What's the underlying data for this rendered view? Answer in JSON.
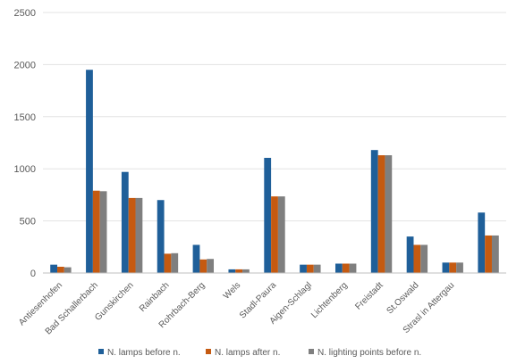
{
  "chart_data": {
    "type": "bar",
    "categories": [
      "Antiesenhofen",
      "Bad Schallerbach",
      "Gunskirchen",
      "Rainbach",
      "Rohrbach-Berg",
      "Wels",
      "Stadl-Paura",
      "Aigen-Schlagl",
      "Lichtenberg",
      "Freistadt",
      "St.Oswald",
      "Strasl in Attergau",
      ""
    ],
    "series": [
      {
        "name": "N. lamps before n.",
        "color": "#1f5f99",
        "values": [
          80,
          1950,
          970,
          700,
          270,
          35,
          1105,
          80,
          90,
          1180,
          350,
          100,
          580
        ]
      },
      {
        "name": "N. lamps after n.",
        "color": "#c55a11",
        "values": [
          60,
          790,
          720,
          185,
          130,
          35,
          735,
          80,
          90,
          1130,
          270,
          100,
          360
        ]
      },
      {
        "name": "N. lighting points before n.",
        "color": "#7f7f7f",
        "values": [
          55,
          785,
          720,
          190,
          135,
          35,
          735,
          80,
          90,
          1130,
          270,
          100,
          360
        ]
      }
    ],
    "yticks": [
      "0",
      "500",
      "1000",
      "1500",
      "2000",
      "2500"
    ],
    "ylim": [
      0,
      2500
    ],
    "title": "",
    "xlabel": "",
    "ylabel": "",
    "grid": true,
    "legend": "bottom"
  }
}
